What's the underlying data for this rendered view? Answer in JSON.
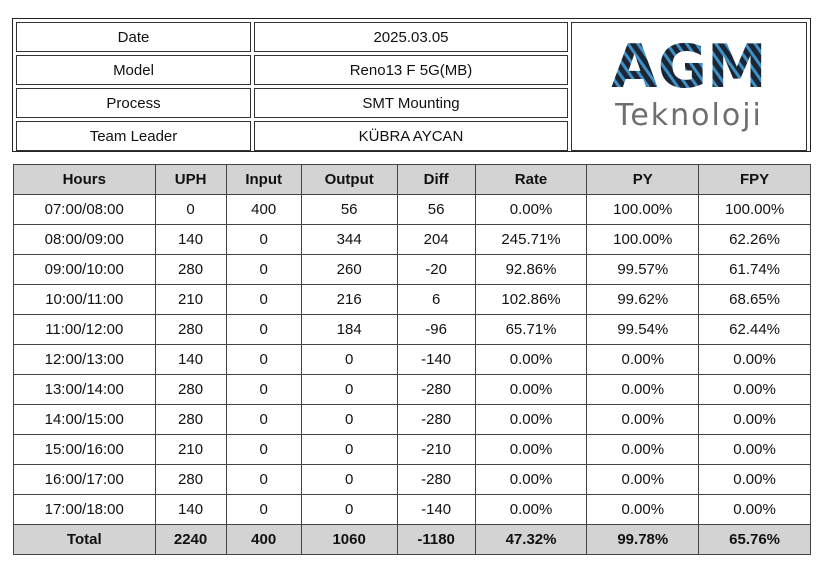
{
  "info": {
    "rows": [
      [
        "Date",
        "2025.03.05"
      ],
      [
        "Model",
        "Reno13 F 5G(MB)"
      ],
      [
        "Process",
        "SMT Mounting"
      ],
      [
        "Team Leader",
        "KÜBRA AYCAN"
      ]
    ]
  },
  "logo": {
    "name": "AGM",
    "subtitle": "Teknoloji"
  },
  "table": {
    "header": [
      "Hours",
      "UPH",
      "Input",
      "Output",
      "Diff",
      "Rate",
      "PY",
      "FPY"
    ],
    "rows": [
      [
        "07:00/08:00",
        "0",
        "400",
        "56",
        "56",
        "0.00%",
        "100.00%",
        "100.00%"
      ],
      [
        "08:00/09:00",
        "140",
        "0",
        "344",
        "204",
        "245.71%",
        "100.00%",
        "62.26%"
      ],
      [
        "09:00/10:00",
        "280",
        "0",
        "260",
        "-20",
        "92.86%",
        "99.57%",
        "61.74%"
      ],
      [
        "10:00/11:00",
        "210",
        "0",
        "216",
        "6",
        "102.86%",
        "99.62%",
        "68.65%"
      ],
      [
        "11:00/12:00",
        "280",
        "0",
        "184",
        "-96",
        "65.71%",
        "99.54%",
        "62.44%"
      ],
      [
        "12:00/13:00",
        "140",
        "0",
        "0",
        "-140",
        "0.00%",
        "0.00%",
        "0.00%"
      ],
      [
        "13:00/14:00",
        "280",
        "0",
        "0",
        "-280",
        "0.00%",
        "0.00%",
        "0.00%"
      ],
      [
        "14:00/15:00",
        "280",
        "0",
        "0",
        "-280",
        "0.00%",
        "0.00%",
        "0.00%"
      ],
      [
        "15:00/16:00",
        "210",
        "0",
        "0",
        "-210",
        "0.00%",
        "0.00%",
        "0.00%"
      ],
      [
        "16:00/17:00",
        "280",
        "0",
        "0",
        "-280",
        "0.00%",
        "0.00%",
        "0.00%"
      ],
      [
        "17:00/18:00",
        "140",
        "0",
        "0",
        "-140",
        "0.00%",
        "0.00%",
        "0.00%"
      ]
    ],
    "total": [
      "Total",
      "2240",
      "400",
      "1060",
      "-1180",
      "47.32%",
      "99.78%",
      "65.76%"
    ]
  }
}
